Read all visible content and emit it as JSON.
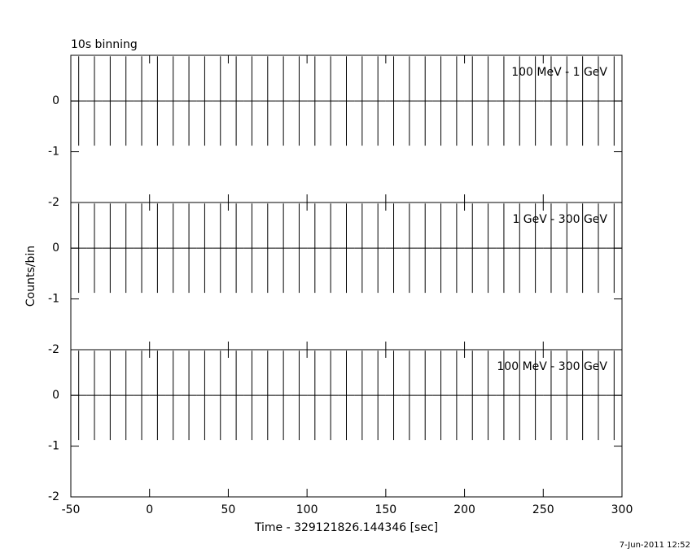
{
  "chart_data": [
    {
      "type": "errorbar",
      "title": "10s binning",
      "label": "100 MeV - 1 GeV",
      "x": [
        -45,
        -35,
        -25,
        -15,
        -5,
        5,
        15,
        25,
        35,
        45,
        55,
        65,
        75,
        85,
        95,
        105,
        115,
        125,
        135,
        145,
        155,
        165,
        175,
        185,
        195,
        205,
        215,
        225,
        235,
        245,
        255,
        265,
        275,
        285,
        295
      ],
      "values": [
        0,
        0,
        0,
        0,
        0,
        0,
        0,
        0,
        0,
        0,
        0,
        0,
        0,
        0,
        0,
        0,
        0,
        0,
        0,
        0,
        0,
        0,
        0,
        0,
        0,
        0,
        0,
        0,
        0,
        0,
        0,
        0,
        0,
        0,
        0
      ],
      "errors": [
        0.88,
        0.88,
        0.88,
        0.88,
        0.88,
        0.88,
        0.88,
        0.88,
        0.88,
        0.88,
        0.88,
        0.88,
        0.88,
        0.88,
        0.88,
        0.88,
        0.88,
        0.88,
        0.88,
        0.88,
        0.88,
        0.88,
        0.88,
        0.88,
        0.88,
        0.88,
        0.88,
        0.88,
        0.88,
        0.88,
        0.88,
        0.88,
        0.88,
        0.88,
        0.88
      ],
      "color": "#000000",
      "xlim": [
        -50,
        300
      ],
      "xticks": [
        -50,
        0,
        50,
        100,
        150,
        200,
        250,
        300
      ],
      "ylim": [
        -2,
        0.9
      ],
      "yticks": [
        0,
        -1,
        -2
      ]
    },
    {
      "type": "errorbar",
      "label": "1 GeV - 300 GeV",
      "ylabel": "Counts/bin",
      "x": [
        -45,
        -35,
        -25,
        -15,
        -5,
        5,
        15,
        25,
        35,
        45,
        55,
        65,
        75,
        85,
        95,
        105,
        115,
        125,
        135,
        145,
        155,
        165,
        175,
        185,
        195,
        205,
        215,
        225,
        235,
        245,
        255,
        265,
        275,
        285,
        295
      ],
      "values": [
        0,
        0,
        0,
        0,
        0,
        0,
        0,
        0,
        0,
        0,
        0,
        0,
        0,
        0,
        0,
        0,
        0,
        0,
        0,
        0,
        0,
        0,
        0,
        0,
        0,
        0,
        0,
        0,
        0,
        0,
        0,
        0,
        0,
        0,
        0
      ],
      "errors": [
        0.88,
        0.88,
        0.88,
        0.88,
        0.88,
        0.88,
        0.88,
        0.88,
        0.88,
        0.88,
        0.88,
        0.88,
        0.88,
        0.88,
        0.88,
        0.88,
        0.88,
        0.88,
        0.88,
        0.88,
        0.88,
        0.88,
        0.88,
        0.88,
        0.88,
        0.88,
        0.88,
        0.88,
        0.88,
        0.88,
        0.88,
        0.88,
        0.88,
        0.88,
        0.88
      ],
      "color": "#000000",
      "xlim": [
        -50,
        300
      ],
      "xticks": [
        -50,
        0,
        50,
        100,
        150,
        200,
        250,
        300
      ],
      "ylim": [
        -2,
        0.9
      ],
      "yticks": [
        0,
        -1,
        -2
      ]
    },
    {
      "type": "errorbar",
      "label": "100 MeV - 300 GeV",
      "xlabel": "Time - 329121826.144346 [sec]",
      "x": [
        -45,
        -35,
        -25,
        -15,
        -5,
        5,
        15,
        25,
        35,
        45,
        55,
        65,
        75,
        85,
        95,
        105,
        115,
        125,
        135,
        145,
        155,
        165,
        175,
        185,
        195,
        205,
        215,
        225,
        235,
        245,
        255,
        265,
        275,
        285,
        295
      ],
      "values": [
        0,
        0,
        0,
        0,
        0,
        0,
        0,
        0,
        0,
        0,
        0,
        0,
        0,
        0,
        0,
        0,
        0,
        0,
        0,
        0,
        0,
        0,
        0,
        0,
        0,
        0,
        0,
        0,
        0,
        0,
        0,
        0,
        0,
        0,
        0
      ],
      "errors": [
        0.88,
        0.88,
        0.88,
        0.88,
        0.88,
        0.88,
        0.88,
        0.88,
        0.88,
        0.88,
        0.88,
        0.88,
        0.88,
        0.88,
        0.88,
        0.88,
        0.88,
        0.88,
        0.88,
        0.88,
        0.88,
        0.88,
        0.88,
        0.88,
        0.88,
        0.88,
        0.88,
        0.88,
        0.88,
        0.88,
        0.88,
        0.88,
        0.88,
        0.88,
        0.88
      ],
      "color": "#000000",
      "xlim": [
        -50,
        300
      ],
      "xticks": [
        -50,
        0,
        50,
        100,
        150,
        200,
        250,
        300
      ],
      "ylim": [
        -2,
        0.9
      ],
      "yticks": [
        0,
        -1,
        -2
      ]
    }
  ],
  "timestamp": "7-Jun-2011 12:52"
}
